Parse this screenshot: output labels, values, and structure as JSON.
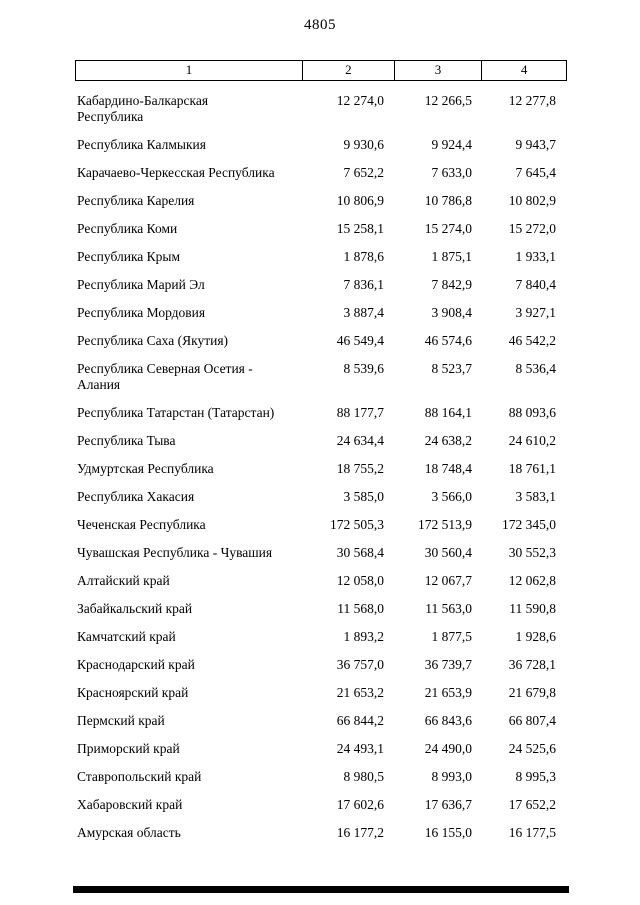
{
  "page": {
    "number": "4805"
  },
  "table": {
    "headers": [
      "1",
      "2",
      "3",
      "4"
    ],
    "rows": [
      {
        "name": "Кабардино-Балкарская\nРеспублика",
        "c2": "12 274,0",
        "c3": "12 266,5",
        "c4": "12 277,8"
      },
      {
        "name": "Республика Калмыкия",
        "c2": "9 930,6",
        "c3": "9 924,4",
        "c4": "9 943,7"
      },
      {
        "name": "Карачаево-Черкесская Республика",
        "c2": "7 652,2",
        "c3": "7 633,0",
        "c4": "7 645,4"
      },
      {
        "name": "Республика Карелия",
        "c2": "10 806,9",
        "c3": "10 786,8",
        "c4": "10 802,9"
      },
      {
        "name": "Республика Коми",
        "c2": "15 258,1",
        "c3": "15 274,0",
        "c4": "15 272,0"
      },
      {
        "name": "Республика Крым",
        "c2": "1 878,6",
        "c3": "1 875,1",
        "c4": "1 933,1"
      },
      {
        "name": "Республика Марий Эл",
        "c2": "7 836,1",
        "c3": "7 842,9",
        "c4": "7 840,4"
      },
      {
        "name": "Республика Мордовия",
        "c2": "3 887,4",
        "c3": "3 908,4",
        "c4": "3 927,1"
      },
      {
        "name": "Республика Саха (Якутия)",
        "c2": "46 549,4",
        "c3": "46 574,6",
        "c4": "46 542,2"
      },
      {
        "name": "Республика Северная Осетия -\nАлания",
        "c2": "8 539,6",
        "c3": "8 523,7",
        "c4": "8 536,4"
      },
      {
        "name": "Республика Татарстан (Татарстан)",
        "c2": "88 177,7",
        "c3": "88 164,1",
        "c4": "88 093,6"
      },
      {
        "name": "Республика Тыва",
        "c2": "24 634,4",
        "c3": "24 638,2",
        "c4": "24 610,2"
      },
      {
        "name": "Удмуртская Республика",
        "c2": "18 755,2",
        "c3": "18 748,4",
        "c4": "18 761,1"
      },
      {
        "name": "Республика Хакасия",
        "c2": "3 585,0",
        "c3": "3 566,0",
        "c4": "3 583,1"
      },
      {
        "name": "Чеченская Республика",
        "c2": "172 505,3",
        "c3": "172 513,9",
        "c4": "172 345,0"
      },
      {
        "name": "Чувашская Республика - Чувашия",
        "c2": "30 568,4",
        "c3": "30 560,4",
        "c4": "30 552,3"
      },
      {
        "name": "Алтайский край",
        "c2": "12 058,0",
        "c3": "12 067,7",
        "c4": "12 062,8"
      },
      {
        "name": "Забайкальский край",
        "c2": "11 568,0",
        "c3": "11 563,0",
        "c4": "11 590,8"
      },
      {
        "name": "Камчатский край",
        "c2": "1 893,2",
        "c3": "1 877,5",
        "c4": "1 928,6"
      },
      {
        "name": "Краснодарский край",
        "c2": "36 757,0",
        "c3": "36 739,7",
        "c4": "36 728,1"
      },
      {
        "name": "Красноярский край",
        "c2": "21 653,2",
        "c3": "21 653,9",
        "c4": "21 679,8"
      },
      {
        "name": "Пермский край",
        "c2": "66 844,2",
        "c3": "66 843,6",
        "c4": "66 807,4"
      },
      {
        "name": "Приморский край",
        "c2": "24 493,1",
        "c3": "24 490,0",
        "c4": "24 525,6"
      },
      {
        "name": "Ставропольский край",
        "c2": "8 980,5",
        "c3": "8 993,0",
        "c4": "8 995,3"
      },
      {
        "name": "Хабаровский край",
        "c2": "17 602,6",
        "c3": "17 636,7",
        "c4": "17 652,2"
      },
      {
        "name": "Амурская область",
        "c2": "16 177,2",
        "c3": "16 155,0",
        "c4": "16 177,5"
      }
    ]
  }
}
